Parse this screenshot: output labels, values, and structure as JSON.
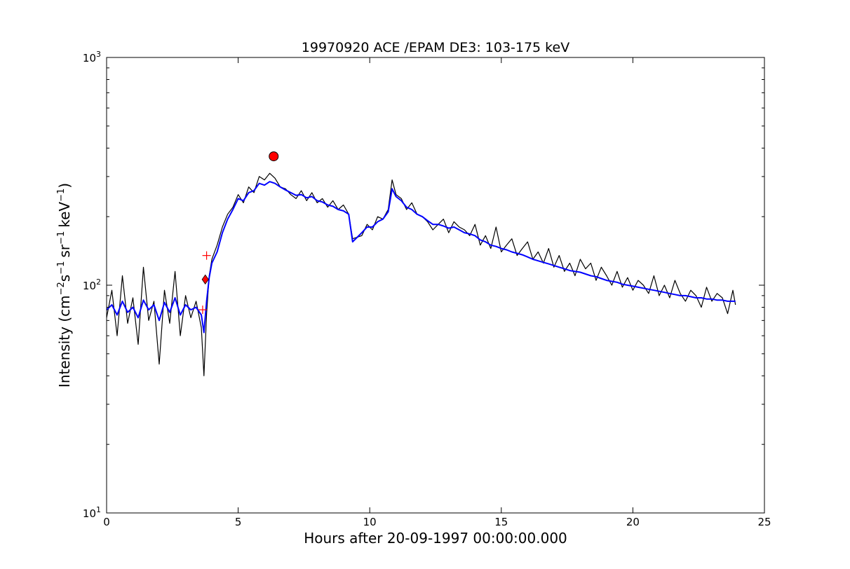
{
  "chart_data": {
    "type": "line",
    "title": "19970920 ACE /EPAM DE3: 103-175 keV",
    "xlabel": "Hours after 20-09-1997 00:00:00.000",
    "ylabel": {
      "prefix": "Intensity (cm",
      "exp1": "−2",
      "s": "s",
      "exp2": "−1",
      "sr": "sr",
      "exp3": "−1",
      "kev": "keV",
      "exp4": "−1",
      "suffix": ")"
    },
    "xlim": [
      0,
      25
    ],
    "ylim": [
      10,
      1000
    ],
    "yscale": "log",
    "grid": false,
    "x_ticks": [
      "0",
      "5",
      "10",
      "15",
      "20",
      "25"
    ],
    "y_ticks": [
      {
        "base": "10",
        "exp": "1",
        "value": 10
      },
      {
        "base": "10",
        "exp": "2",
        "value": 100
      },
      {
        "base": "10",
        "exp": "3",
        "value": 1000
      }
    ],
    "colors": {
      "raw": "#000000",
      "smoothed": "#0000ff",
      "marker": "#ff0000"
    },
    "series": [
      {
        "role": "raw",
        "color": "#000000",
        "x": [
          0.0,
          0.2,
          0.4,
          0.6,
          0.8,
          1.0,
          1.2,
          1.4,
          1.6,
          1.8,
          2.0,
          2.2,
          2.4,
          2.6,
          2.8,
          3.0,
          3.2,
          3.4,
          3.6,
          3.7,
          3.8,
          3.9,
          4.0,
          4.2,
          4.4,
          4.6,
          4.8,
          5.0,
          5.2,
          5.4,
          5.6,
          5.8,
          6.0,
          6.2,
          6.4,
          6.6,
          6.8,
          7.0,
          7.2,
          7.4,
          7.6,
          7.8,
          8.0,
          8.2,
          8.4,
          8.6,
          8.8,
          9.0,
          9.2,
          9.35,
          9.7,
          9.9,
          10.1,
          10.3,
          10.5,
          10.7,
          10.85,
          11.0,
          11.2,
          11.4,
          11.6,
          11.8,
          12.0,
          12.2,
          12.4,
          12.6,
          12.8,
          13.0,
          13.2,
          13.4,
          13.6,
          13.8,
          14.0,
          14.2,
          14.4,
          14.6,
          14.8,
          15.0,
          15.2,
          15.4,
          15.6,
          15.8,
          16.0,
          16.2,
          16.4,
          16.6,
          16.8,
          17.0,
          17.2,
          17.4,
          17.6,
          17.8,
          18.0,
          18.2,
          18.4,
          18.6,
          18.8,
          19.0,
          19.2,
          19.4,
          19.6,
          19.8,
          20.0,
          20.2,
          20.4,
          20.6,
          20.8,
          21.0,
          21.2,
          21.4,
          21.6,
          21.8,
          22.0,
          22.2,
          22.4,
          22.6,
          22.8,
          23.0,
          23.2,
          23.4,
          23.6,
          23.8,
          23.9
        ],
        "y": [
          72,
          95,
          60,
          110,
          68,
          88,
          55,
          120,
          70,
          85,
          45,
          95,
          68,
          115,
          60,
          90,
          72,
          85,
          65,
          40,
          75,
          110,
          130,
          150,
          180,
          205,
          220,
          250,
          230,
          270,
          255,
          300,
          290,
          310,
          295,
          270,
          265,
          250,
          240,
          260,
          235,
          255,
          230,
          240,
          220,
          235,
          215,
          225,
          205,
          160,
          165,
          185,
          175,
          200,
          195,
          215,
          290,
          250,
          240,
          215,
          230,
          205,
          200,
          190,
          175,
          185,
          195,
          170,
          190,
          180,
          175,
          165,
          185,
          150,
          165,
          145,
          180,
          140,
          150,
          160,
          135,
          145,
          155,
          130,
          140,
          125,
          145,
          120,
          135,
          115,
          125,
          110,
          130,
          118,
          125,
          105,
          120,
          110,
          100,
          115,
          98,
          108,
          95,
          105,
          100,
          92,
          110,
          90,
          100,
          88,
          105,
          92,
          85,
          95,
          90,
          80,
          98,
          85,
          92,
          88,
          75,
          95,
          82
        ]
      },
      {
        "role": "smoothed",
        "color": "#0000ff",
        "x": [
          0.0,
          0.2,
          0.4,
          0.6,
          0.8,
          1.0,
          1.2,
          1.4,
          1.6,
          1.8,
          2.0,
          2.2,
          2.4,
          2.6,
          2.8,
          3.0,
          3.2,
          3.4,
          3.6,
          3.7,
          3.8,
          3.9,
          4.0,
          4.2,
          4.4,
          4.6,
          4.8,
          5.0,
          5.2,
          5.4,
          5.6,
          5.8,
          6.0,
          6.2,
          6.4,
          6.6,
          6.8,
          7.0,
          7.2,
          7.4,
          7.6,
          7.8,
          8.0,
          8.2,
          8.4,
          8.6,
          8.8,
          9.0,
          9.2,
          9.35,
          9.7,
          9.9,
          10.1,
          10.3,
          10.5,
          10.7,
          10.85,
          11.0,
          11.2,
          11.4,
          11.6,
          11.8,
          12.0,
          12.2,
          12.4,
          12.6,
          12.8,
          13.0,
          13.2,
          13.4,
          13.6,
          13.8,
          14.0,
          14.2,
          14.4,
          14.6,
          14.8,
          15.0,
          15.2,
          15.4,
          15.6,
          15.8,
          16.0,
          16.2,
          16.4,
          16.6,
          16.8,
          17.0,
          17.2,
          17.4,
          17.6,
          17.8,
          18.0,
          18.2,
          18.4,
          18.6,
          18.8,
          19.0,
          19.2,
          19.4,
          19.6,
          19.8,
          20.0,
          20.2,
          20.4,
          20.6,
          20.8,
          21.0,
          21.2,
          21.4,
          21.6,
          21.8,
          22.0,
          22.2,
          22.4,
          22.6,
          22.8,
          23.0,
          23.2,
          23.4,
          23.6,
          23.8,
          23.9
        ],
        "y": [
          78,
          82,
          74,
          85,
          76,
          80,
          72,
          86,
          78,
          82,
          70,
          84,
          76,
          88,
          74,
          82,
          78,
          80,
          74,
          62,
          85,
          108,
          125,
          140,
          170,
          195,
          215,
          240,
          235,
          255,
          260,
          280,
          275,
          285,
          280,
          270,
          262,
          255,
          248,
          250,
          242,
          245,
          235,
          232,
          225,
          222,
          215,
          212,
          205,
          155,
          170,
          180,
          180,
          190,
          195,
          210,
          265,
          245,
          235,
          220,
          215,
          205,
          200,
          192,
          185,
          185,
          182,
          178,
          180,
          175,
          170,
          168,
          165,
          158,
          155,
          150,
          148,
          145,
          143,
          140,
          138,
          136,
          133,
          130,
          128,
          126,
          124,
          122,
          120,
          118,
          116,
          115,
          114,
          112,
          110,
          109,
          107,
          105,
          104,
          103,
          101,
          100,
          99,
          98,
          97,
          96,
          95,
          94,
          93,
          92,
          91,
          90,
          90,
          89,
          88,
          88,
          87,
          87,
          86,
          86,
          85,
          85,
          85
        ]
      }
    ],
    "markers": [
      {
        "type": "circle",
        "x": 6.35,
        "y": 368,
        "color": "#ff0000"
      },
      {
        "type": "diamond",
        "x": 3.75,
        "y": 106,
        "color": "#ff0000"
      },
      {
        "type": "plus",
        "x": 3.8,
        "y": 135,
        "color": "#ff0000"
      },
      {
        "type": "plus",
        "x": 3.65,
        "y": 78,
        "color": "#ff0000"
      }
    ]
  }
}
